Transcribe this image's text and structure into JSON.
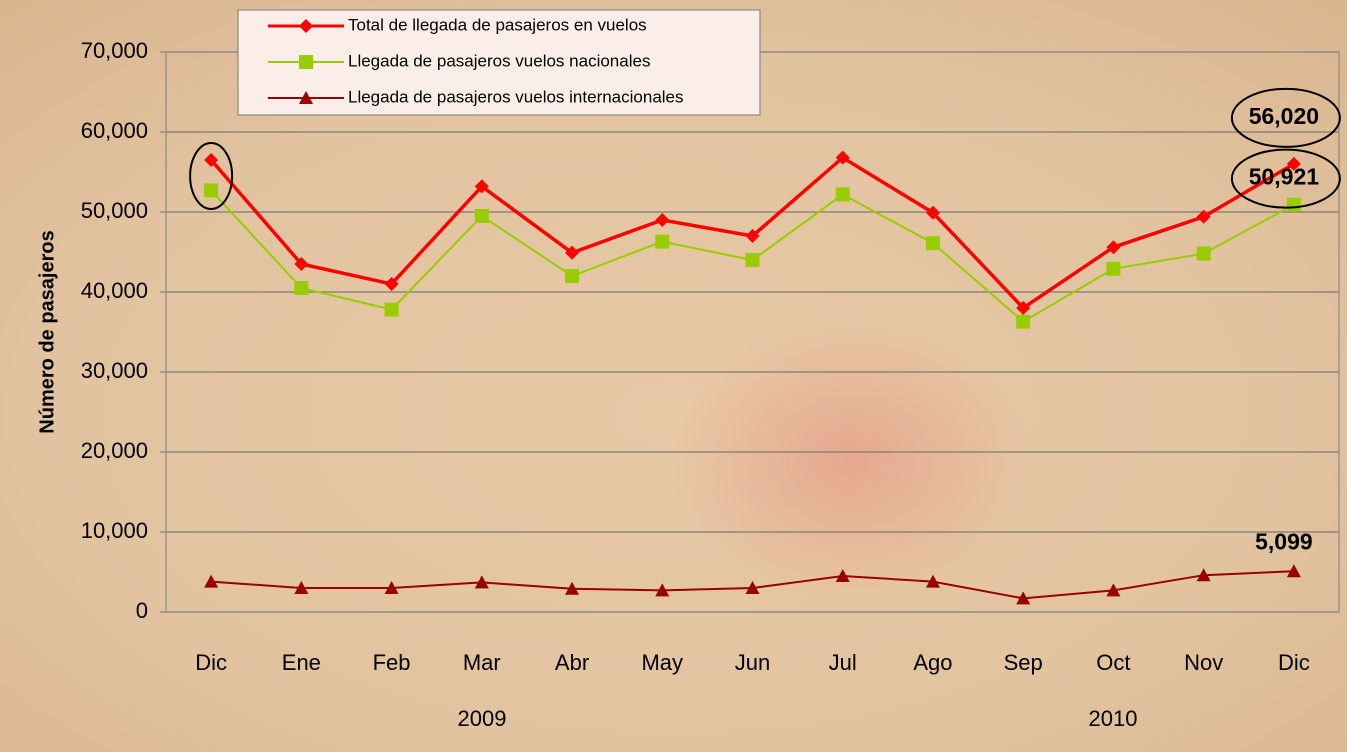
{
  "chart_data": {
    "type": "line",
    "y_label": "Número de pasajeros",
    "categories": [
      "Dic",
      "Ene",
      "Feb",
      "Mar",
      "Abr",
      "May",
      "Jun",
      "Jul",
      "Ago",
      "Sep",
      "Oct",
      "Nov",
      "Dic"
    ],
    "year_labels": [
      "2009",
      "2010"
    ],
    "series": [
      {
        "name": "Total de llegada de pasajeros en vuelos",
        "color": "#ff0000",
        "marker": "diamond",
        "values": [
          56500,
          43500,
          41000,
          53200,
          44900,
          49000,
          47000,
          56800,
          49900,
          38000,
          45600,
          49400,
          56020
        ],
        "value_labels": [
          null,
          null,
          null,
          null,
          null,
          null,
          null,
          null,
          null,
          null,
          null,
          null,
          "56,020"
        ]
      },
      {
        "name": "Llegada de pasajeros vuelos nacionales",
        "color": "#99cc00",
        "marker": "square",
        "values": [
          52700,
          40500,
          37800,
          49500,
          42000,
          46300,
          44000,
          52200,
          46100,
          36300,
          42900,
          44800,
          50921
        ],
        "value_labels": [
          null,
          null,
          null,
          null,
          null,
          null,
          null,
          null,
          null,
          null,
          null,
          null,
          "50,921"
        ]
      },
      {
        "name": "Llegada de pasajeros vuelos internacionales",
        "color": "#990000",
        "marker": "triangle",
        "values": [
          3800,
          3000,
          3000,
          3700,
          2900,
          2700,
          3000,
          4500,
          3800,
          1700,
          2700,
          4600,
          5099
        ],
        "value_labels": [
          null,
          null,
          null,
          null,
          null,
          null,
          null,
          null,
          null,
          null,
          null,
          null,
          "5,099"
        ]
      }
    ],
    "ylim": [
      0,
      70000
    ],
    "yticks": [
      0,
      {
        "value": 10000,
        "label": "10,000"
      },
      {
        "value": 20000,
        "label": "20,000"
      },
      {
        "value": 30000,
        "label": "30,000"
      },
      {
        "value": 40000,
        "label": "40,000"
      },
      {
        "value": 50000,
        "label": "50,000"
      },
      {
        "value": 60000,
        "label": "60,000"
      },
      {
        "value": 70000,
        "label": "70,000"
      }
    ],
    "grid": true
  }
}
